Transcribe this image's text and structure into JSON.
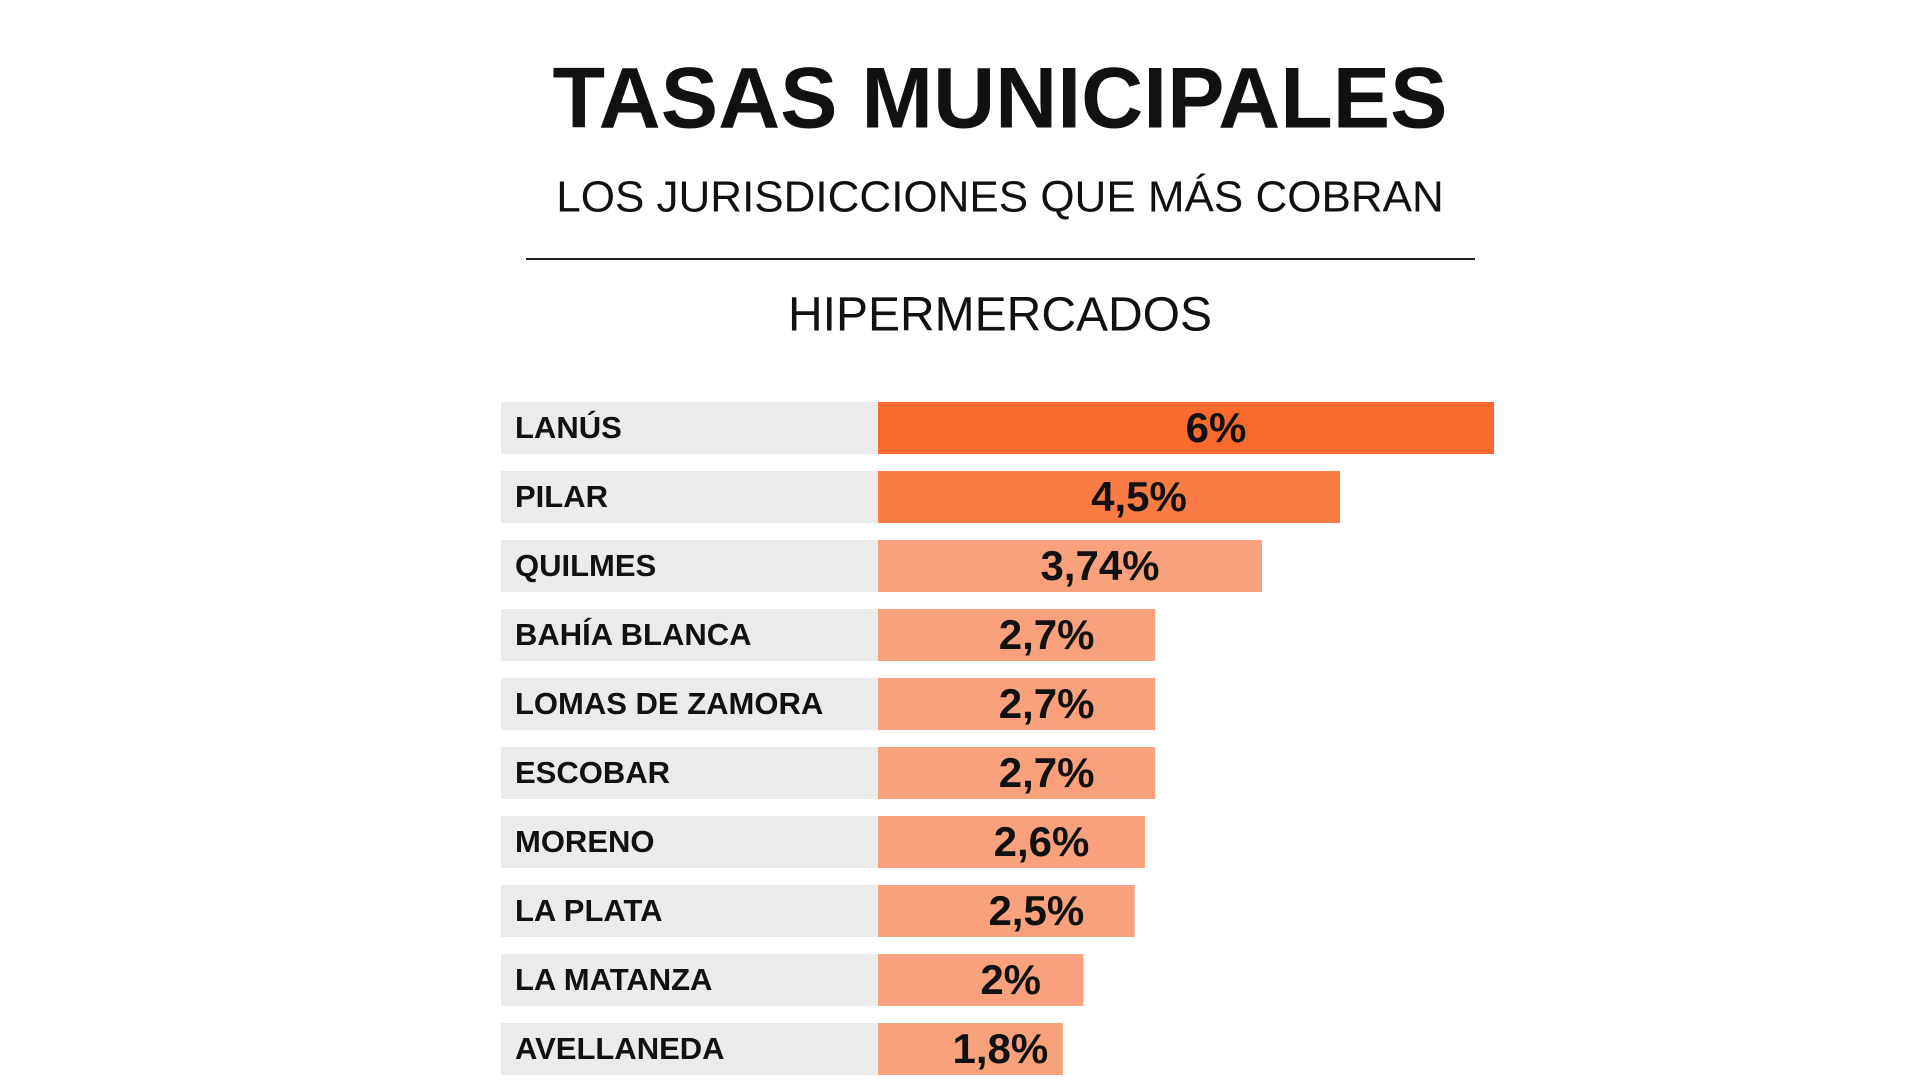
{
  "chart_data": {
    "type": "bar",
    "orientation": "horizontal",
    "title": "TASAS MUNICIPALES",
    "subtitle": "LOS JURISDICCIONES QUE MÁS COBRAN",
    "section_title": "HIPERMERCADOS",
    "categories": [
      "LANÚS",
      "PILAR",
      "QUILMES",
      "BAHÍA BLANCA",
      "LOMAS DE ZAMORA",
      "ESCOBAR",
      "MORENO",
      "LA PLATA",
      "LA MATANZA",
      "AVELLANEDA"
    ],
    "values": [
      6,
      4.5,
      3.74,
      2.7,
      2.7,
      2.7,
      2.6,
      2.5,
      2,
      1.8
    ],
    "value_labels": [
      "6%",
      "4,5%",
      "3,74%",
      "2,7%",
      "2,7%",
      "2,7%",
      "2,6%",
      "2,5%",
      "2%",
      "1,8%"
    ],
    "colors": [
      "#f96a2f",
      "#f97c45",
      "#f9a07c",
      "#f9a07c",
      "#f9a07c",
      "#f9a07c",
      "#f9a07c",
      "#f9a07c",
      "#f9a07c",
      "#f9a07c"
    ]
  }
}
